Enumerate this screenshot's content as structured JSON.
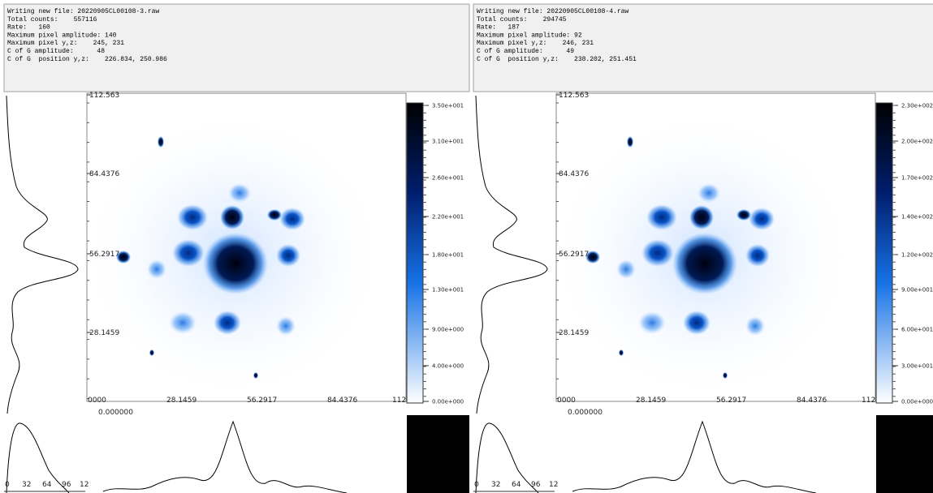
{
  "panels": [
    {
      "info_lines": [
        "Writing new file: 20220905CL00108-3.raw",
        "Total counts:    557116",
        "Rate:   160",
        "Maximum pixel amplitude: 140",
        "Maximum pixel y,z:    245, 231",
        "C of G amplitude:      48",
        "C of G  position y,z:    226.834, 250.986"
      ],
      "y_axis_labels": [
        "112.563",
        "84.4376",
        "56.2917",
        "28.1459"
      ],
      "x_axis_labels": [
        "0000",
        "28.1459",
        "56.2917",
        "84.4376",
        "112"
      ],
      "x_axis_sub_label": "0.000000",
      "colorbar_labels": [
        "3.50e+001",
        "3.10e+001",
        "2.60e+001",
        "2.20e+001",
        "1.80e+001",
        "1.30e+001",
        "9.00e+000",
        "4.00e+000",
        "0.00e+000"
      ],
      "profile_ticks": [
        "0",
        "32",
        "64",
        "96",
        "12"
      ]
    },
    {
      "info_lines": [
        "Writing new file: 20220905CL00108-4.raw",
        "Total counts:    294745",
        "Rate:   187",
        "Maximum pixel amplitude: 92",
        "Maximum pixel y,z:    246, 231",
        "C of G amplitude:      49",
        "C of G  position y,z:    238.202, 251.451"
      ],
      "y_axis_labels": [
        "112.563",
        "84.4376",
        "56.2917",
        "28.1459"
      ],
      "x_axis_labels": [
        "0000",
        "28.1459",
        "56.2917",
        "84.4376",
        "112"
      ],
      "x_axis_sub_label": "0.000000",
      "colorbar_labels": [
        "2.30e+002",
        "2.00e+002",
        "1.70e+002",
        "1.40e+002",
        "1.20e+002",
        "9.00e+001",
        "6.00e+001",
        "3.00e+001",
        "0.00e+000"
      ],
      "profile_ticks": [
        "0",
        "32",
        "64",
        "96",
        "12"
      ]
    }
  ]
}
